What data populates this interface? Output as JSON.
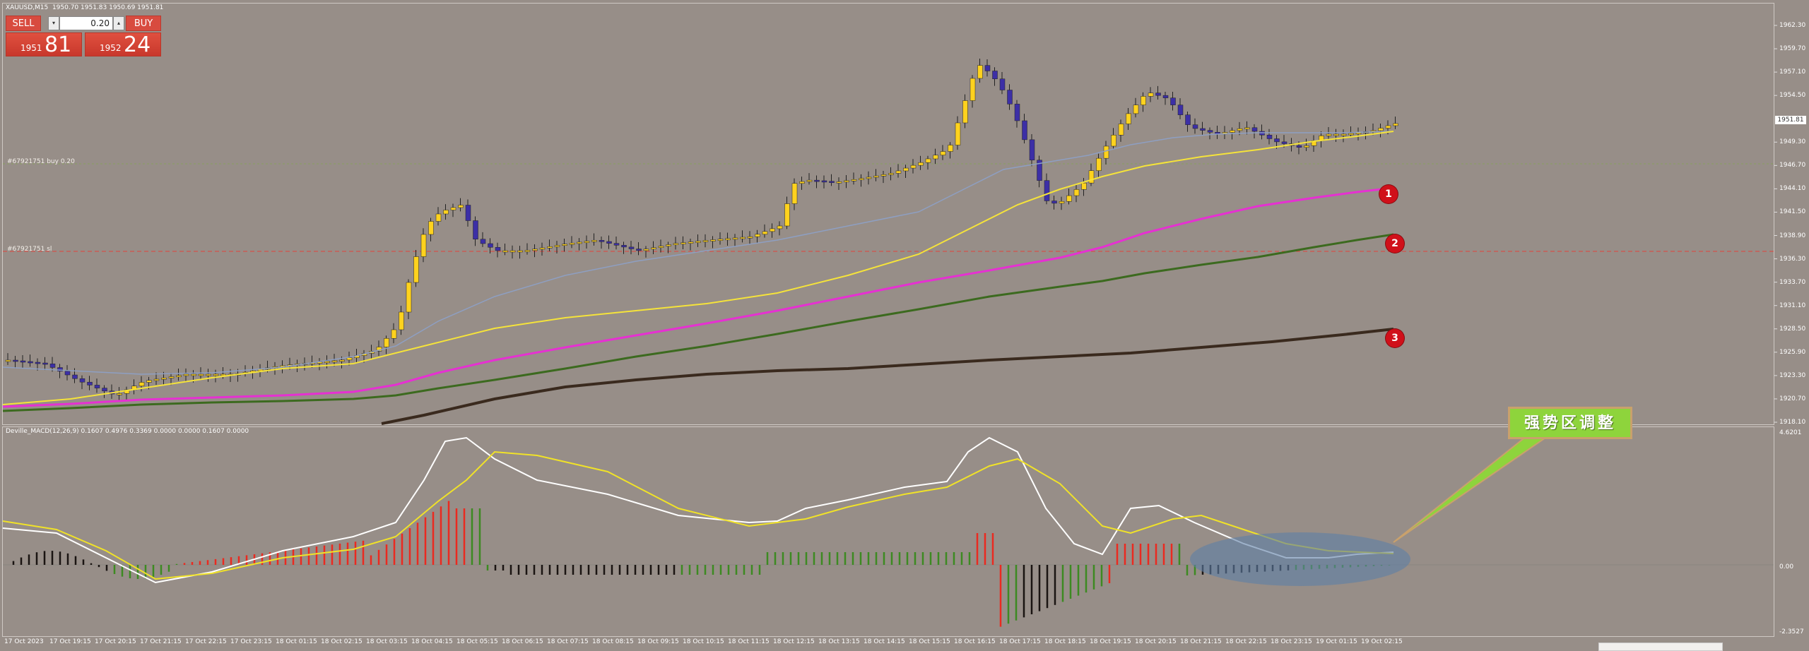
{
  "title": "XAUUSD,M15  1950.70 1951.83 1950.69 1951.81",
  "trade_panel": {
    "sell_label": "SELL",
    "buy_label": "BUY",
    "volume": "0.20",
    "sell_price_prefix": "1951",
    "sell_price_big": "81",
    "buy_price_prefix": "1952",
    "buy_price_big": "24"
  },
  "order_lines": [
    {
      "label": "#67921751 buy 0.20",
      "color": "#8aa060"
    },
    {
      "label": "#67921751 sl",
      "color": "#e0443c"
    }
  ],
  "current_price": "1951.81",
  "y_axis_main": [
    "1962.30",
    "1959.70",
    "1957.10",
    "1954.50",
    "1951.81",
    "1949.30",
    "1946.70",
    "1944.10",
    "1941.50",
    "1938.90",
    "1936.30",
    "1933.70",
    "1931.10",
    "1928.50",
    "1925.90",
    "1923.30",
    "1920.70",
    "1918.10"
  ],
  "y_axis_macd": [
    "4.6201",
    "0.00",
    "-2.3527"
  ],
  "macd_title": "Deville_MACD(12,26,9) 0.1607 0.4976 0.3369 0.0000 0.0000 0.1607 0.0000",
  "x_axis": [
    "17 Oct 2023",
    "17 Oct 19:15",
    "17 Oct 20:15",
    "17 Oct 21:15",
    "17 Oct 22:15",
    "17 Oct 23:15",
    "18 Oct 01:15",
    "18 Oct 02:15",
    "18 Oct 03:15",
    "18 Oct 04:15",
    "18 Oct 05:15",
    "18 Oct 06:15",
    "18 Oct 07:15",
    "18 Oct 08:15",
    "18 Oct 09:15",
    "18 Oct 10:15",
    "18 Oct 11:15",
    "18 Oct 12:15",
    "18 Oct 13:15",
    "18 Oct 14:15",
    "18 Oct 15:15",
    "18 Oct 16:15",
    "18 Oct 17:15",
    "18 Oct 18:15",
    "18 Oct 19:15",
    "18 Oct 20:15",
    "18 Oct 21:15",
    "18 Oct 22:15",
    "18 Oct 23:15",
    "19 Oct 01:15",
    "19 Oct 02:15"
  ],
  "markers": [
    "1",
    "2",
    "3"
  ],
  "callout_text": "强势区调整",
  "colors": {
    "background": "#978e88",
    "bull_candle": "#ffd21e",
    "bear_candle": "#3c2fa6",
    "ma_fast": "#8e9fc2",
    "ma_yellow": "#f5e33a",
    "ma_magenta": "#e630d2",
    "ma_green": "#3c6a1f",
    "ma_brown": "#3a2a1e",
    "macd_white": "#ffffff",
    "macd_signal": "#f0e228",
    "hist_red": "#ea2a20",
    "hist_green": "#3d8a22",
    "hist_black": "#1a1412"
  }
}
